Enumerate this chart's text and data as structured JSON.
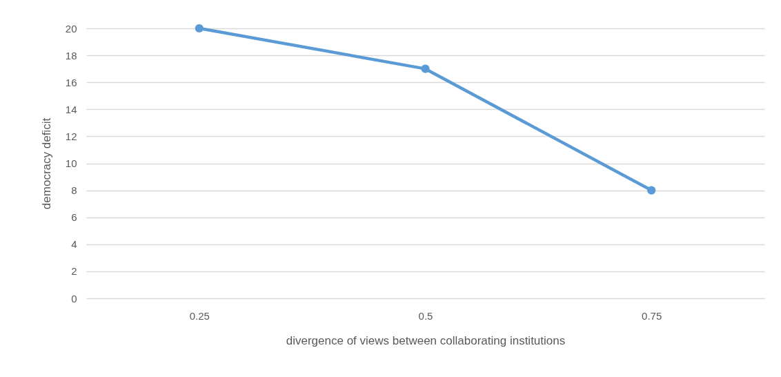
{
  "chart_data": {
    "type": "line",
    "xlabel": "divergence of views between collaborating institutions",
    "ylabel": "democracy deficit",
    "categories": [
      "0.25",
      "0.5",
      "0.75"
    ],
    "series": [
      {
        "color": "#5b9bd5",
        "values": [
          20,
          17,
          8
        ]
      }
    ],
    "ylim": [
      0,
      20
    ],
    "yticks": [
      0,
      2,
      4,
      6,
      8,
      10,
      12,
      14,
      16,
      18,
      20
    ],
    "grid": "y",
    "marker": "circle",
    "line_style": "solid"
  }
}
